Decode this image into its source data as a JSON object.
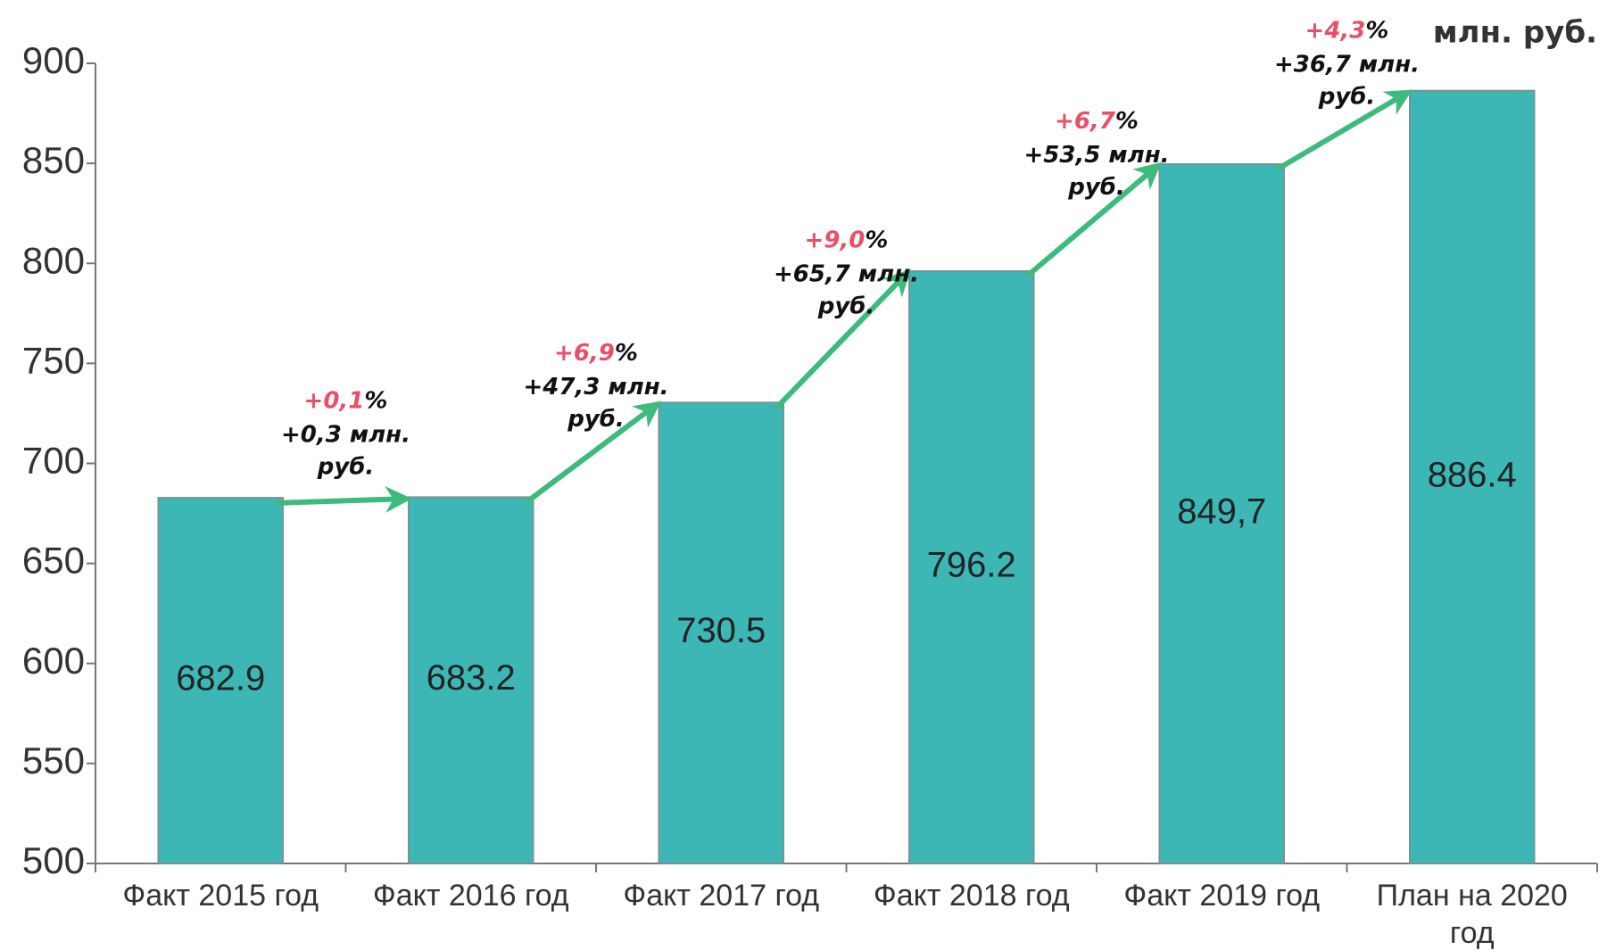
{
  "chart_data": {
    "type": "bar",
    "unit_label": "млн. руб.",
    "categories": [
      "Факт 2015 год",
      "Факт 2016 год",
      "Факт 2017 год",
      "Факт 2018 год",
      "Факт 2019 год",
      "План на 2020 год"
    ],
    "values": [
      682.9,
      683.2,
      730.5,
      796.2,
      849.7,
      886.4
    ],
    "value_labels": [
      "682.9",
      "683.2",
      "730.5",
      "796.2",
      "849,7",
      "886.4"
    ],
    "color": "#3db6b6",
    "ylim": [
      500,
      900
    ],
    "yticks": [
      500,
      550,
      600,
      650,
      700,
      750,
      800,
      850,
      900
    ],
    "annotations": [
      {
        "percent": "+0,1",
        "sign": "%",
        "amount": "+0,3 млн.",
        "unit": "руб."
      },
      {
        "percent": "+6,9",
        "sign": "%",
        "amount": "+47,3 млн.",
        "unit": "руб."
      },
      {
        "percent": "+9,0",
        "sign": "%",
        "amount": "+65,7 млн.",
        "unit": "руб."
      },
      {
        "percent": "+6,7",
        "sign": "%",
        "amount": "+53,5 млн.",
        "unit": "руб."
      },
      {
        "percent": "+4,3",
        "sign": "%",
        "amount": "+36,7 млн.",
        "unit": "руб."
      }
    ]
  }
}
